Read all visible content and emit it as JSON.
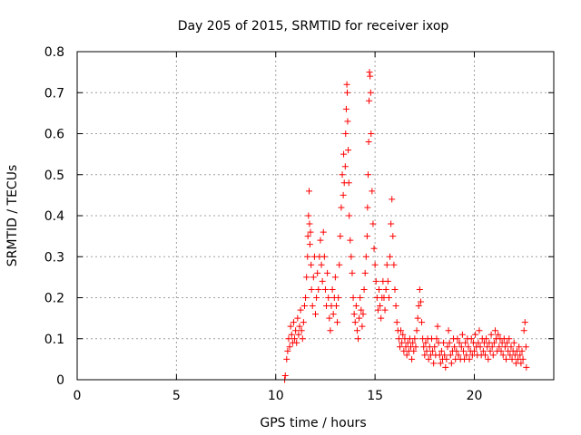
{
  "chart_data": {
    "type": "scatter",
    "title": "Day 205 of 2015, SRMTID for receiver ixop",
    "xlabel": "GPS time / hours",
    "ylabel": "SRMTID / TECUs",
    "xlim": [
      0,
      24
    ],
    "ylim": [
      0,
      0.8
    ],
    "xticks": [
      0,
      5,
      10,
      15,
      20
    ],
    "yticks": [
      0,
      0.1,
      0.2,
      0.3,
      0.4,
      0.5,
      0.6,
      0.7,
      0.8
    ],
    "xtick_labels": [
      "0",
      "5",
      "10",
      "15",
      "20"
    ],
    "ytick_labels": [
      "0",
      "0.1",
      "0.2",
      "0.3",
      "0.4",
      "0.5",
      "0.6",
      "0.7",
      "0.8"
    ],
    "grid": true,
    "marker": "+",
    "marker_color": "#ff0000",
    "series": [
      {
        "name": "SRMTID",
        "points": [
          [
            10.45,
            0.0
          ],
          [
            10.48,
            0.01
          ],
          [
            10.55,
            0.05
          ],
          [
            10.6,
            0.07
          ],
          [
            10.65,
            0.1
          ],
          [
            10.7,
            0.08
          ],
          [
            10.75,
            0.13
          ],
          [
            10.8,
            0.11
          ],
          [
            10.85,
            0.09
          ],
          [
            10.9,
            0.14
          ],
          [
            10.95,
            0.1
          ],
          [
            11.0,
            0.12
          ],
          [
            11.05,
            0.09
          ],
          [
            11.1,
            0.15
          ],
          [
            11.15,
            0.11
          ],
          [
            11.2,
            0.13
          ],
          [
            11.25,
            0.17
          ],
          [
            11.3,
            0.12
          ],
          [
            11.35,
            0.1
          ],
          [
            11.4,
            0.14
          ],
          [
            11.45,
            0.18
          ],
          [
            11.5,
            0.2
          ],
          [
            11.55,
            0.25
          ],
          [
            11.6,
            0.3
          ],
          [
            11.62,
            0.35
          ],
          [
            11.65,
            0.4
          ],
          [
            11.68,
            0.46
          ],
          [
            11.7,
            0.38
          ],
          [
            11.72,
            0.33
          ],
          [
            11.75,
            0.36
          ],
          [
            11.78,
            0.28
          ],
          [
            11.8,
            0.22
          ],
          [
            11.85,
            0.18
          ],
          [
            11.9,
            0.25
          ],
          [
            11.95,
            0.3
          ],
          [
            12.0,
            0.16
          ],
          [
            12.05,
            0.2
          ],
          [
            12.1,
            0.26
          ],
          [
            12.15,
            0.22
          ],
          [
            12.2,
            0.3
          ],
          [
            12.25,
            0.34
          ],
          [
            12.3,
            0.28
          ],
          [
            12.35,
            0.24
          ],
          [
            12.4,
            0.36
          ],
          [
            12.45,
            0.3
          ],
          [
            12.5,
            0.22
          ],
          [
            12.55,
            0.18
          ],
          [
            12.6,
            0.26
          ],
          [
            12.65,
            0.2
          ],
          [
            12.7,
            0.15
          ],
          [
            12.75,
            0.12
          ],
          [
            12.8,
            0.18
          ],
          [
            12.85,
            0.22
          ],
          [
            12.9,
            0.16
          ],
          [
            12.95,
            0.2
          ],
          [
            13.0,
            0.25
          ],
          [
            13.05,
            0.18
          ],
          [
            13.1,
            0.14
          ],
          [
            13.15,
            0.2
          ],
          [
            13.2,
            0.28
          ],
          [
            13.25,
            0.35
          ],
          [
            13.3,
            0.42
          ],
          [
            13.35,
            0.5
          ],
          [
            13.4,
            0.45
          ],
          [
            13.42,
            0.55
          ],
          [
            13.45,
            0.48
          ],
          [
            13.5,
            0.52
          ],
          [
            13.52,
            0.6
          ],
          [
            13.55,
            0.66
          ],
          [
            13.58,
            0.72
          ],
          [
            13.6,
            0.7
          ],
          [
            13.62,
            0.63
          ],
          [
            13.65,
            0.56
          ],
          [
            13.68,
            0.48
          ],
          [
            13.7,
            0.4
          ],
          [
            13.75,
            0.34
          ],
          [
            13.8,
            0.3
          ],
          [
            13.85,
            0.26
          ],
          [
            13.9,
            0.2
          ],
          [
            13.95,
            0.16
          ],
          [
            14.0,
            0.14
          ],
          [
            14.05,
            0.18
          ],
          [
            14.1,
            0.12
          ],
          [
            14.15,
            0.1
          ],
          [
            14.2,
            0.15
          ],
          [
            14.25,
            0.2
          ],
          [
            14.3,
            0.17
          ],
          [
            14.35,
            0.13
          ],
          [
            14.4,
            0.16
          ],
          [
            14.45,
            0.22
          ],
          [
            14.5,
            0.26
          ],
          [
            14.55,
            0.3
          ],
          [
            14.6,
            0.35
          ],
          [
            14.62,
            0.42
          ],
          [
            14.65,
            0.5
          ],
          [
            14.68,
            0.58
          ],
          [
            14.7,
            0.68
          ],
          [
            14.72,
            0.75
          ],
          [
            14.75,
            0.74
          ],
          [
            14.78,
            0.7
          ],
          [
            14.8,
            0.6
          ],
          [
            14.85,
            0.46
          ],
          [
            14.9,
            0.38
          ],
          [
            14.95,
            0.32
          ],
          [
            15.0,
            0.28
          ],
          [
            15.05,
            0.24
          ],
          [
            15.1,
            0.2
          ],
          [
            15.15,
            0.17
          ],
          [
            15.2,
            0.22
          ],
          [
            15.25,
            0.18
          ],
          [
            15.3,
            0.15
          ],
          [
            15.35,
            0.2
          ],
          [
            15.4,
            0.24
          ],
          [
            15.45,
            0.2
          ],
          [
            15.5,
            0.17
          ],
          [
            15.55,
            0.22
          ],
          [
            15.6,
            0.28
          ],
          [
            15.65,
            0.24
          ],
          [
            15.7,
            0.2
          ],
          [
            15.75,
            0.3
          ],
          [
            15.8,
            0.38
          ],
          [
            15.85,
            0.44
          ],
          [
            15.9,
            0.35
          ],
          [
            15.95,
            0.28
          ],
          [
            16.0,
            0.22
          ],
          [
            16.05,
            0.18
          ],
          [
            16.1,
            0.14
          ],
          [
            16.15,
            0.12
          ],
          [
            16.2,
            0.1
          ],
          [
            16.25,
            0.08
          ],
          [
            16.3,
            0.12
          ],
          [
            16.35,
            0.09
          ],
          [
            16.4,
            0.11
          ],
          [
            16.45,
            0.07
          ],
          [
            16.5,
            0.1
          ],
          [
            16.55,
            0.08
          ],
          [
            16.6,
            0.06
          ],
          [
            16.65,
            0.09
          ],
          [
            16.7,
            0.07
          ],
          [
            16.75,
            0.1
          ],
          [
            16.8,
            0.08
          ],
          [
            16.85,
            0.05
          ],
          [
            16.9,
            0.09
          ],
          [
            16.95,
            0.07
          ],
          [
            17.0,
            0.1
          ],
          [
            17.05,
            0.08
          ],
          [
            17.1,
            0.12
          ],
          [
            17.15,
            0.15
          ],
          [
            17.2,
            0.18
          ],
          [
            17.25,
            0.22
          ],
          [
            17.3,
            0.19
          ],
          [
            17.35,
            0.14
          ],
          [
            17.4,
            0.1
          ],
          [
            17.45,
            0.08
          ],
          [
            17.5,
            0.06
          ],
          [
            17.55,
            0.09
          ],
          [
            17.6,
            0.07
          ],
          [
            17.65,
            0.1
          ],
          [
            17.7,
            0.05
          ],
          [
            17.75,
            0.08
          ],
          [
            17.8,
            0.06
          ],
          [
            17.85,
            0.1
          ],
          [
            17.9,
            0.07
          ],
          [
            17.95,
            0.04
          ],
          [
            18.0,
            0.08
          ],
          [
            18.05,
            0.06
          ],
          [
            18.1,
            0.1
          ],
          [
            18.15,
            0.13
          ],
          [
            18.2,
            0.09
          ],
          [
            18.25,
            0.06
          ],
          [
            18.3,
            0.04
          ],
          [
            18.35,
            0.07
          ],
          [
            18.4,
            0.05
          ],
          [
            18.45,
            0.09
          ],
          [
            18.5,
            0.06
          ],
          [
            18.55,
            0.03
          ],
          [
            18.6,
            0.05
          ],
          [
            18.65,
            0.08
          ],
          [
            18.7,
            0.12
          ],
          [
            18.75,
            0.09
          ],
          [
            18.8,
            0.06
          ],
          [
            18.85,
            0.04
          ],
          [
            18.9,
            0.07
          ],
          [
            18.95,
            0.1
          ],
          [
            19.0,
            0.08
          ],
          [
            19.05,
            0.05
          ],
          [
            19.1,
            0.07
          ],
          [
            19.15,
            0.1
          ],
          [
            19.2,
            0.06
          ],
          [
            19.25,
            0.09
          ],
          [
            19.3,
            0.05
          ],
          [
            19.35,
            0.08
          ],
          [
            19.4,
            0.11
          ],
          [
            19.45,
            0.07
          ],
          [
            19.5,
            0.05
          ],
          [
            19.55,
            0.09
          ],
          [
            19.6,
            0.06
          ],
          [
            19.65,
            0.1
          ],
          [
            19.7,
            0.08
          ],
          [
            19.75,
            0.05
          ],
          [
            19.8,
            0.07
          ],
          [
            19.85,
            0.1
          ],
          [
            19.9,
            0.06
          ],
          [
            19.95,
            0.09
          ],
          [
            20.0,
            0.07
          ],
          [
            20.05,
            0.11
          ],
          [
            20.1,
            0.08
          ],
          [
            20.15,
            0.06
          ],
          [
            20.2,
            0.09
          ],
          [
            20.25,
            0.12
          ],
          [
            20.3,
            0.08
          ],
          [
            20.35,
            0.06
          ],
          [
            20.4,
            0.1
          ],
          [
            20.45,
            0.07
          ],
          [
            20.5,
            0.09
          ],
          [
            20.55,
            0.06
          ],
          [
            20.6,
            0.1
          ],
          [
            20.65,
            0.08
          ],
          [
            20.7,
            0.05
          ],
          [
            20.75,
            0.09
          ],
          [
            20.8,
            0.07
          ],
          [
            20.85,
            0.11
          ],
          [
            20.9,
            0.08
          ],
          [
            20.95,
            0.06
          ],
          [
            21.0,
            0.09
          ],
          [
            21.05,
            0.12
          ],
          [
            21.1,
            0.1
          ],
          [
            21.15,
            0.07
          ],
          [
            21.2,
            0.11
          ],
          [
            21.25,
            0.08
          ],
          [
            21.3,
            0.1
          ],
          [
            21.35,
            0.07
          ],
          [
            21.4,
            0.09
          ],
          [
            21.45,
            0.06
          ],
          [
            21.5,
            0.1
          ],
          [
            21.55,
            0.08
          ],
          [
            21.6,
            0.05
          ],
          [
            21.65,
            0.09
          ],
          [
            21.7,
            0.07
          ],
          [
            21.75,
            0.1
          ],
          [
            21.8,
            0.06
          ],
          [
            21.85,
            0.08
          ],
          [
            21.9,
            0.05
          ],
          [
            21.95,
            0.07
          ],
          [
            22.0,
            0.09
          ],
          [
            22.05,
            0.06
          ],
          [
            22.1,
            0.04
          ],
          [
            22.15,
            0.07
          ],
          [
            22.2,
            0.05
          ],
          [
            22.25,
            0.08
          ],
          [
            22.3,
            0.06
          ],
          [
            22.35,
            0.04
          ],
          [
            22.4,
            0.07
          ],
          [
            22.45,
            0.05
          ],
          [
            22.5,
            0.12
          ],
          [
            22.55,
            0.14
          ],
          [
            22.6,
            0.08
          ],
          [
            22.62,
            0.03
          ]
        ]
      }
    ]
  }
}
